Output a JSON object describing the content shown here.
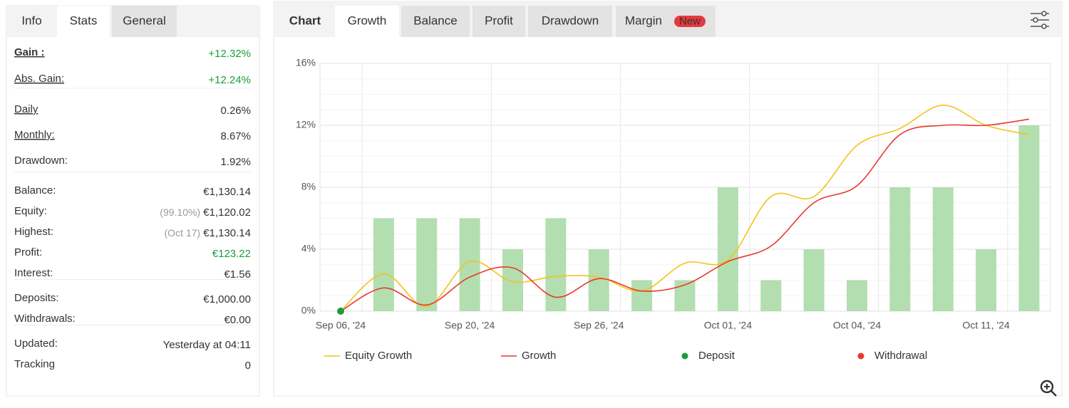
{
  "left_tabs": [
    "Info",
    "Stats",
    "General"
  ],
  "stat_groups": [
    [
      {
        "label": "Gain :",
        "value": "+12.32%",
        "color": "#1a9c3a",
        "bold": true,
        "underline": true
      },
      {
        "label": "Abs. Gain:",
        "value": "+12.24%",
        "color": "#1a9c3a",
        "underline": true
      }
    ],
    [
      {
        "label": "Daily",
        "value": "0.26%",
        "underline": true
      },
      {
        "label": "Monthly:",
        "value": "8.67%",
        "underline": true
      },
      {
        "label": "Drawdown:",
        "value": "1.92%"
      }
    ],
    [
      {
        "label": "Balance:",
        "value": "€1,130.14"
      },
      {
        "label": "Equity:",
        "note": "(99.10%)",
        "value": "€1,120.02"
      },
      {
        "label": "Highest:",
        "note": "(Oct 17)",
        "value": "€1,130.14"
      },
      {
        "label": "Profit:",
        "value": "€123.22",
        "color": "#1a9c3a"
      },
      {
        "label": "Interest:",
        "value": "€1.56"
      }
    ],
    [
      {
        "label": "Deposits:",
        "value": "€1,000.00"
      },
      {
        "label": "Withdrawals:",
        "value": "€0.00"
      }
    ],
    [
      {
        "label": "Updated:",
        "value": "Yesterday at 04:11"
      },
      {
        "label": "Tracking",
        "value": "0"
      }
    ]
  ],
  "chart_tabs": [
    "Chart",
    "Growth",
    "Balance",
    "Profit",
    "Drawdown",
    "Margin"
  ],
  "new_badge": "New",
  "chart_data": {
    "type": "combo",
    "categories": [
      "Sep 06, '24",
      null,
      null,
      "Sep 20, '24",
      null,
      null,
      "Sep 26, '24",
      null,
      null,
      "Oct 01, '24",
      null,
      null,
      "Oct 04, '24",
      null,
      null,
      "Oct 11, '24",
      null
    ],
    "bars": {
      "color": "#b3deb0",
      "values": [
        null,
        6,
        6,
        6,
        4,
        6,
        4,
        2,
        2,
        8,
        2,
        4,
        2,
        8,
        8,
        4,
        12
      ]
    },
    "series": [
      {
        "name": "Equity Growth",
        "color": "#f5c21b",
        "values": [
          0,
          2.4,
          0.3,
          3.2,
          1.9,
          2.25,
          2.2,
          1.3,
          3.1,
          3.3,
          7.4,
          7.4,
          10.7,
          11.8,
          13.3,
          12.0,
          11.4
        ]
      },
      {
        "name": "Growth",
        "color": "#e8382f",
        "values": [
          0,
          1.5,
          0.4,
          2.2,
          2.8,
          0.9,
          2.1,
          1.3,
          1.7,
          3.2,
          4.2,
          7.0,
          8.1,
          11.4,
          12.0,
          12.0,
          12.4
        ]
      }
    ],
    "markers": [
      {
        "name": "Deposit",
        "color": "#1a9c3a",
        "values": [
          0,
          null,
          null,
          null,
          null,
          null,
          null,
          null,
          null,
          null,
          null,
          null,
          null,
          null,
          null,
          null,
          null
        ]
      },
      {
        "name": "Withdrawal",
        "color": "#e8382f",
        "values": [
          null,
          null,
          null,
          null,
          null,
          null,
          null,
          null,
          null,
          null,
          null,
          null,
          null,
          null,
          null,
          null,
          null
        ]
      }
    ],
    "ylim": [
      0,
      16
    ],
    "yticks": [
      {
        "value": 0,
        "label": "0%"
      },
      {
        "value": 4,
        "label": "4%"
      },
      {
        "value": 8,
        "label": "8%"
      },
      {
        "value": 12,
        "label": "12%"
      },
      {
        "value": 16,
        "label": "16%"
      }
    ],
    "grid": true
  }
}
